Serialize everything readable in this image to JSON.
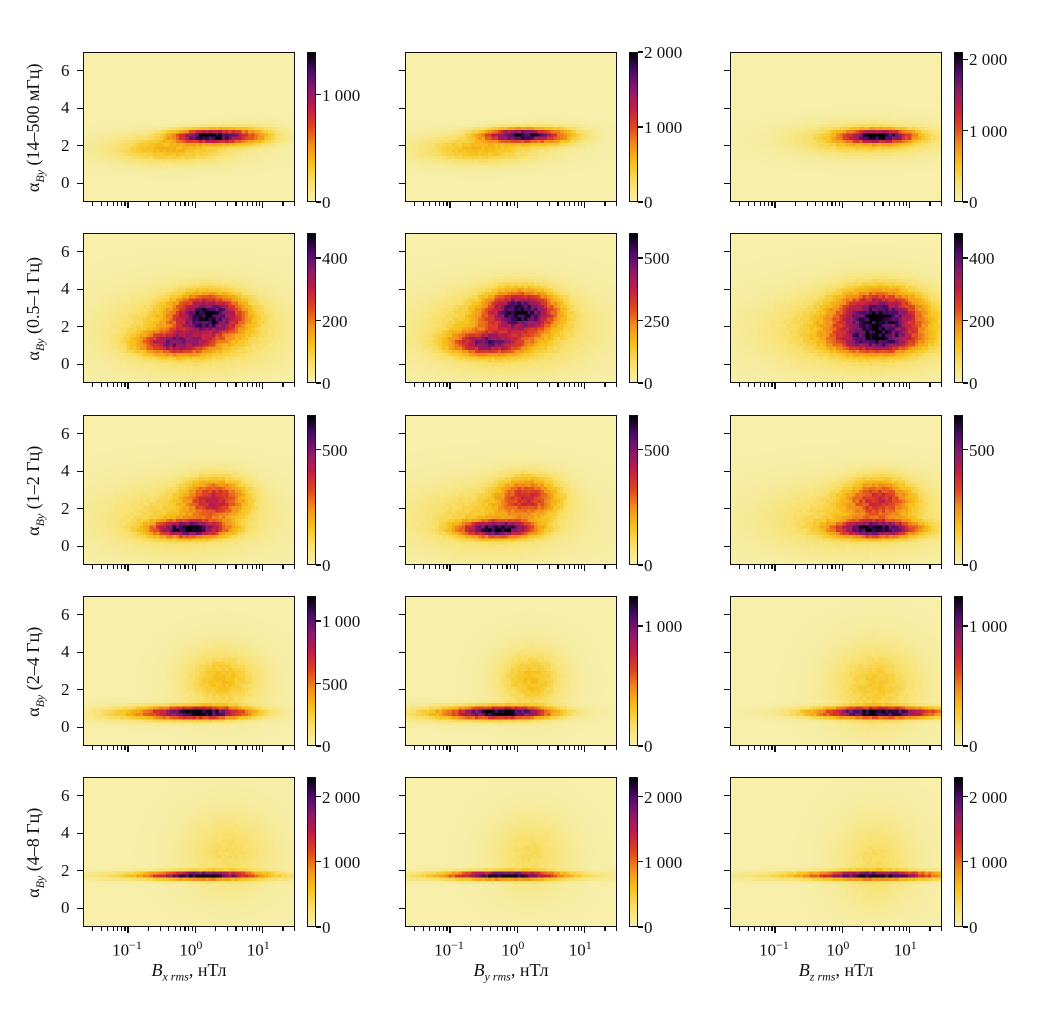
{
  "chart_data": {
    "type": "heatmap",
    "grid_layout": "5 rows x 3 columns",
    "xscale": "log",
    "xlim_log10": [
      -1.67,
      1.48
    ],
    "ylim": [
      -1,
      7
    ],
    "yticks": [
      0,
      2,
      4,
      6
    ],
    "xticks": [
      {
        "log10": -1,
        "base": "10",
        "exp": "−1"
      },
      {
        "log10": 0,
        "base": "10",
        "exp": "0"
      },
      {
        "log10": 1,
        "base": "10",
        "exp": "1"
      }
    ],
    "colormap": [
      "#f7efaa",
      "#f8e06a",
      "#f7c21a",
      "#f2901a",
      "#e0451e",
      "#c11d45",
      "#8b1a6a",
      "#4a0c6b",
      "#000004"
    ],
    "columns": [
      {
        "xlabel": {
          "symbol": "B",
          "sub": "x rms",
          "unit": ", нТл"
        }
      },
      {
        "xlabel": {
          "symbol": "B",
          "sub": "y rms",
          "unit": ", нТл"
        }
      },
      {
        "xlabel": {
          "symbol": "B",
          "sub": "z rms",
          "unit": ", нТл"
        }
      }
    ],
    "rows": [
      {
        "ylabel": {
          "symbol": "α",
          "sub": "By",
          "band": "(14–500 мГц)"
        },
        "panels": [
          {
            "vmax": 1400,
            "cticks": [
              {
                "v": 0,
                "label": "0"
              },
              {
                "v": 1000,
                "label": "1 000"
              }
            ],
            "blobs": [
              {
                "x": 0.2,
                "y": 2.5,
                "sx": 0.33,
                "sy": 0.22,
                "w": 1
              },
              {
                "x": -0.35,
                "y": 1.8,
                "sx": 0.55,
                "sy": 0.45,
                "w": 0.22
              },
              {
                "x": 0.75,
                "y": 2.5,
                "sx": 0.3,
                "sy": 0.3,
                "w": 0.3
              }
            ]
          },
          {
            "vmax": 2000,
            "cticks": [
              {
                "v": 0,
                "label": "0"
              },
              {
                "v": 1000,
                "label": "1 000"
              },
              {
                "v": 2000,
                "label": "2 000"
              }
            ],
            "blobs": [
              {
                "x": 0.0,
                "y": 2.55,
                "sx": 0.33,
                "sy": 0.22,
                "w": 1
              },
              {
                "x": -0.55,
                "y": 1.8,
                "sx": 0.55,
                "sy": 0.45,
                "w": 0.22
              },
              {
                "x": 0.5,
                "y": 2.5,
                "sx": 0.3,
                "sy": 0.3,
                "w": 0.3
              }
            ]
          },
          {
            "vmax": 2100,
            "cticks": [
              {
                "v": 0,
                "label": "0"
              },
              {
                "v": 1000,
                "label": "1 000"
              },
              {
                "v": 2000,
                "label": "2 000"
              }
            ],
            "blobs": [
              {
                "x": 0.55,
                "y": 2.5,
                "sx": 0.33,
                "sy": 0.22,
                "w": 1
              },
              {
                "x": 0.35,
                "y": 2.3,
                "sx": 0.6,
                "sy": 0.5,
                "w": 0.22
              }
            ]
          }
        ]
      },
      {
        "ylabel": {
          "symbol": "α",
          "sub": "By",
          "band": "(0.5–1 Гц)"
        },
        "panels": [
          {
            "vmax": 480,
            "cticks": [
              {
                "v": 0,
                "label": "0"
              },
              {
                "v": 200,
                "label": "200"
              },
              {
                "v": 400,
                "label": "400"
              }
            ],
            "blobs": [
              {
                "x": 0.2,
                "y": 2.6,
                "sx": 0.33,
                "sy": 0.7,
                "w": 1
              },
              {
                "x": -0.3,
                "y": 1.1,
                "sx": 0.35,
                "sy": 0.4,
                "w": 0.7
              },
              {
                "x": 0.0,
                "y": 1.8,
                "sx": 0.7,
                "sy": 1.2,
                "w": 0.25
              }
            ]
          },
          {
            "vmax": 600,
            "cticks": [
              {
                "v": 0,
                "label": "0"
              },
              {
                "v": 250,
                "label": "250"
              },
              {
                "v": 500,
                "label": "500"
              }
            ],
            "blobs": [
              {
                "x": 0.05,
                "y": 2.8,
                "sx": 0.33,
                "sy": 0.7,
                "w": 1
              },
              {
                "x": -0.45,
                "y": 1.1,
                "sx": 0.35,
                "sy": 0.4,
                "w": 0.7
              },
              {
                "x": -0.2,
                "y": 1.8,
                "sx": 0.7,
                "sy": 1.2,
                "w": 0.25
              }
            ]
          },
          {
            "vmax": 480,
            "cticks": [
              {
                "v": 0,
                "label": "0"
              },
              {
                "v": 200,
                "label": "200"
              },
              {
                "v": 400,
                "label": "400"
              }
            ],
            "blobs": [
              {
                "x": 0.55,
                "y": 2.5,
                "sx": 0.4,
                "sy": 0.9,
                "w": 1
              },
              {
                "x": 0.5,
                "y": 1.2,
                "sx": 0.4,
                "sy": 0.4,
                "w": 0.6
              },
              {
                "x": 0.3,
                "y": 1.8,
                "sx": 0.8,
                "sy": 1.2,
                "w": 0.25
              }
            ]
          }
        ]
      },
      {
        "ylabel": {
          "symbol": "α",
          "sub": "By",
          "band": "(1–2 Гц)"
        },
        "panels": [
          {
            "vmax": 650,
            "cticks": [
              {
                "v": 0,
                "label": "0"
              },
              {
                "v": 500,
                "label": "500"
              }
            ],
            "blobs": [
              {
                "x": -0.1,
                "y": 0.9,
                "sx": 0.35,
                "sy": 0.28,
                "w": 1
              },
              {
                "x": 0.3,
                "y": 2.5,
                "sx": 0.3,
                "sy": 0.7,
                "w": 0.55
              },
              {
                "x": -0.2,
                "y": 1.5,
                "sx": 0.7,
                "sy": 1.1,
                "w": 0.15
              }
            ]
          },
          {
            "vmax": 650,
            "cticks": [
              {
                "v": 0,
                "label": "0"
              },
              {
                "v": 500,
                "label": "500"
              }
            ],
            "blobs": [
              {
                "x": -0.3,
                "y": 0.9,
                "sx": 0.35,
                "sy": 0.28,
                "w": 1
              },
              {
                "x": 0.15,
                "y": 2.6,
                "sx": 0.3,
                "sy": 0.7,
                "w": 0.5
              },
              {
                "x": -0.4,
                "y": 1.5,
                "sx": 0.7,
                "sy": 1.1,
                "w": 0.15
              }
            ]
          },
          {
            "vmax": 650,
            "cticks": [
              {
                "v": 0,
                "label": "0"
              },
              {
                "v": 500,
                "label": "500"
              }
            ],
            "blobs": [
              {
                "x": 0.5,
                "y": 0.9,
                "sx": 0.4,
                "sy": 0.28,
                "w": 1
              },
              {
                "x": 0.55,
                "y": 2.5,
                "sx": 0.32,
                "sy": 0.7,
                "w": 0.5
              },
              {
                "x": 0.2,
                "y": 1.5,
                "sx": 0.8,
                "sy": 1.1,
                "w": 0.15
              }
            ]
          }
        ]
      },
      {
        "ylabel": {
          "symbol": "α",
          "sub": "By",
          "band": "(2–4 Гц)"
        },
        "panels": [
          {
            "vmax": 1200,
            "cticks": [
              {
                "v": 0,
                "label": "0"
              },
              {
                "v": 500,
                "label": "500"
              },
              {
                "v": 1000,
                "label": "1 000"
              }
            ],
            "blobs": [
              {
                "x": 0.1,
                "y": 0.75,
                "sx": 0.45,
                "sy": 0.2,
                "w": 1
              },
              {
                "x": 0.4,
                "y": 2.5,
                "sx": 0.35,
                "sy": 1.0,
                "w": 0.2
              },
              {
                "x": -0.5,
                "y": 0.7,
                "sx": 0.6,
                "sy": 0.25,
                "w": 0.25
              }
            ]
          },
          {
            "vmax": 1250,
            "cticks": [
              {
                "v": 0,
                "label": "0"
              },
              {
                "v": 1000,
                "label": "1 000"
              }
            ],
            "blobs": [
              {
                "x": -0.2,
                "y": 0.75,
                "sx": 0.45,
                "sy": 0.2,
                "w": 1
              },
              {
                "x": 0.2,
                "y": 2.5,
                "sx": 0.3,
                "sy": 1.0,
                "w": 0.2
              },
              {
                "x": -0.7,
                "y": 0.7,
                "sx": 0.6,
                "sy": 0.25,
                "w": 0.25
              }
            ]
          },
          {
            "vmax": 1250,
            "cticks": [
              {
                "v": 0,
                "label": "0"
              },
              {
                "v": 1000,
                "label": "1 000"
              }
            ],
            "blobs": [
              {
                "x": 0.55,
                "y": 0.75,
                "sx": 0.6,
                "sy": 0.18,
                "w": 1
              },
              {
                "x": 0.5,
                "y": 2.2,
                "sx": 0.4,
                "sy": 1.3,
                "w": 0.15
              }
            ]
          }
        ]
      },
      {
        "ylabel": {
          "symbol": "α",
          "sub": "By",
          "band": "(4–8 Гц)"
        },
        "panels": [
          {
            "vmax": 2300,
            "cticks": [
              {
                "v": 0,
                "label": "0"
              },
              {
                "v": 1000,
                "label": "1 000"
              },
              {
                "v": 2000,
                "label": "2 000"
              }
            ],
            "blobs": [
              {
                "x": 0.1,
                "y": 1.75,
                "sx": 0.5,
                "sy": 0.13,
                "w": 1
              },
              {
                "x": 0.5,
                "y": 3.0,
                "sx": 0.4,
                "sy": 1.3,
                "w": 0.1
              },
              {
                "x": 0.0,
                "y": 1.7,
                "sx": 1.0,
                "sy": 0.15,
                "w": 0.15
              }
            ]
          },
          {
            "vmax": 2300,
            "cticks": [
              {
                "v": 0,
                "label": "0"
              },
              {
                "v": 1000,
                "label": "1 000"
              },
              {
                "v": 2000,
                "label": "2 000"
              }
            ],
            "blobs": [
              {
                "x": -0.2,
                "y": 1.75,
                "sx": 0.5,
                "sy": 0.13,
                "w": 1
              },
              {
                "x": 0.2,
                "y": 2.9,
                "sx": 0.35,
                "sy": 1.2,
                "w": 0.1
              },
              {
                "x": -0.3,
                "y": 1.7,
                "sx": 1.0,
                "sy": 0.15,
                "w": 0.15
              }
            ]
          },
          {
            "vmax": 2300,
            "cticks": [
              {
                "v": 0,
                "label": "0"
              },
              {
                "v": 1000,
                "label": "1 000"
              },
              {
                "v": 2000,
                "label": "2 000"
              }
            ],
            "blobs": [
              {
                "x": 0.5,
                "y": 1.75,
                "sx": 0.6,
                "sy": 0.13,
                "w": 1
              },
              {
                "x": 0.5,
                "y": 2.5,
                "sx": 0.35,
                "sy": 1.4,
                "w": 0.1
              },
              {
                "x": 0.2,
                "y": 1.7,
                "sx": 1.1,
                "sy": 0.15,
                "w": 0.15
              }
            ]
          }
        ]
      }
    ]
  }
}
